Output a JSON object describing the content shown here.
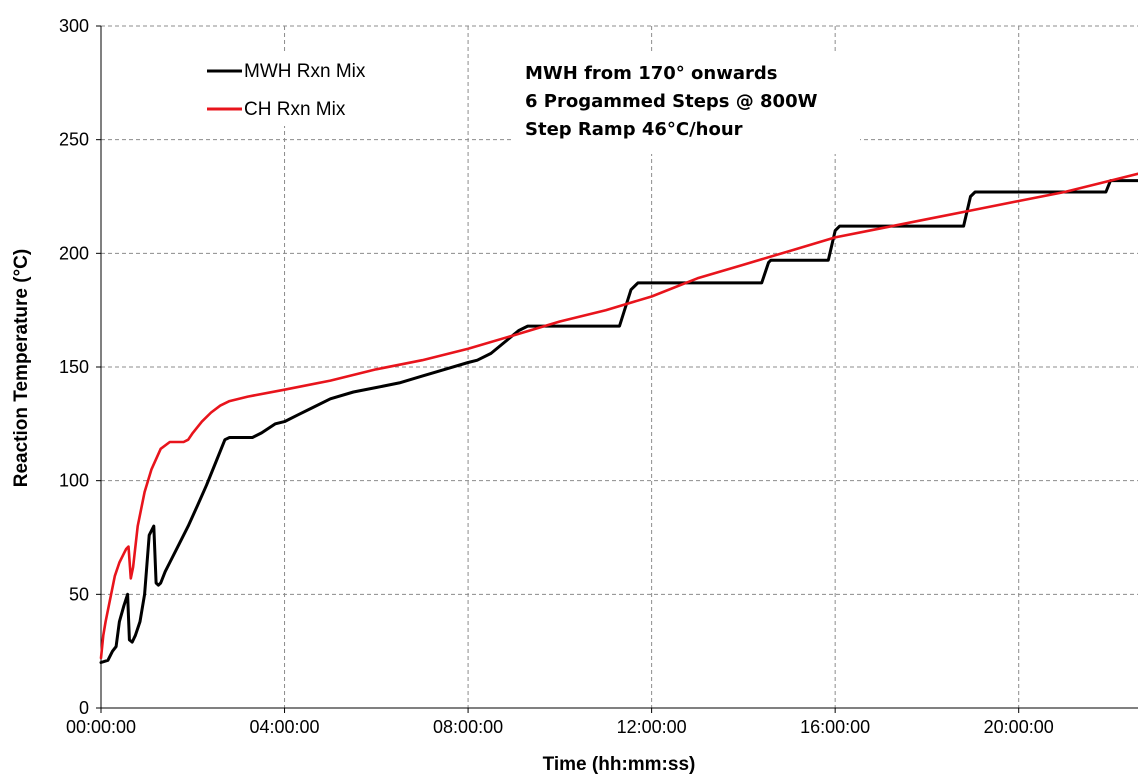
{
  "chart_data": {
    "type": "line",
    "xlabel": "Time (hh:mm:ss)",
    "ylabel": "Reaction Temperature (°C)",
    "xlim_hours": [
      0,
      22.6
    ],
    "ylim": [
      0,
      300
    ],
    "x_tick_values_hours": [
      0,
      4,
      8,
      12,
      16,
      20
    ],
    "x_tick_labels": [
      "00:00:00",
      "04:00:00",
      "08:00:00",
      "12:00:00",
      "16:00:00",
      "20:00:00"
    ],
    "y_ticks": [
      0,
      50,
      100,
      150,
      200,
      250,
      300
    ],
    "grid": true,
    "legend_position": "top-left",
    "annotation": [
      "MWH from 170° onwards",
      "6 Progammed Steps @ 800W",
      "Step Ramp  46°C/hour"
    ],
    "series": [
      {
        "name": "MWH Rxn Mix",
        "color": "#000000",
        "x_hours": [
          0,
          0.15,
          0.25,
          0.33,
          0.4,
          0.5,
          0.58,
          0.62,
          0.68,
          0.75,
          0.85,
          0.95,
          1.05,
          1.15,
          1.2,
          1.25,
          1.3,
          1.4,
          1.5,
          1.7,
          1.9,
          2.1,
          2.3,
          2.5,
          2.7,
          2.8,
          3.0,
          3.3,
          3.5,
          3.8,
          4.0,
          4.3,
          4.6,
          5.0,
          5.5,
          6.0,
          6.5,
          7.0,
          7.5,
          8.0,
          8.2,
          8.5,
          8.8,
          9.1,
          9.3,
          11.3,
          11.55,
          11.7,
          14.4,
          14.55,
          14.6,
          15.85,
          16.0,
          16.1,
          18.8,
          18.95,
          19.05,
          21.9,
          22.0,
          22.6
        ],
        "values": [
          20,
          21,
          25,
          27,
          38,
          45,
          50,
          30,
          29,
          32,
          38,
          50,
          76,
          80,
          55,
          54,
          55,
          60,
          64,
          72,
          80,
          89,
          98,
          108,
          118,
          119,
          119,
          119,
          121,
          125,
          126,
          129,
          132,
          136,
          139,
          141,
          143,
          146,
          149,
          152,
          153,
          156,
          161,
          166,
          168,
          168,
          184,
          187,
          187,
          196,
          197,
          197,
          210,
          212,
          212,
          225,
          227,
          227,
          232,
          232
        ]
      },
      {
        "name": "CH Rxn Mix",
        "color": "#e8141c",
        "x_hours": [
          0,
          0.05,
          0.1,
          0.2,
          0.3,
          0.4,
          0.5,
          0.55,
          0.6,
          0.65,
          0.7,
          0.8,
          0.95,
          1.1,
          1.3,
          1.5,
          1.6,
          1.7,
          1.8,
          1.9,
          2.0,
          2.2,
          2.4,
          2.6,
          2.8,
          3.2,
          4.0,
          5.0,
          6.0,
          7.0,
          8.0,
          9.0,
          10.0,
          11.0,
          12.0,
          13.0,
          14.0,
          15.0,
          16.0,
          17.0,
          18.0,
          19.0,
          20.0,
          21.0,
          22.0,
          22.6
        ],
        "values": [
          22,
          32,
          38,
          48,
          58,
          64,
          68,
          70,
          71,
          57,
          62,
          80,
          95,
          105,
          114,
          117,
          117,
          117,
          117,
          118,
          121,
          126,
          130,
          133,
          135,
          137,
          140,
          144,
          149,
          153,
          158,
          164,
          170,
          175,
          181,
          189,
          195,
          201,
          207,
          211,
          215,
          219,
          223,
          227,
          232,
          235
        ]
      }
    ]
  }
}
